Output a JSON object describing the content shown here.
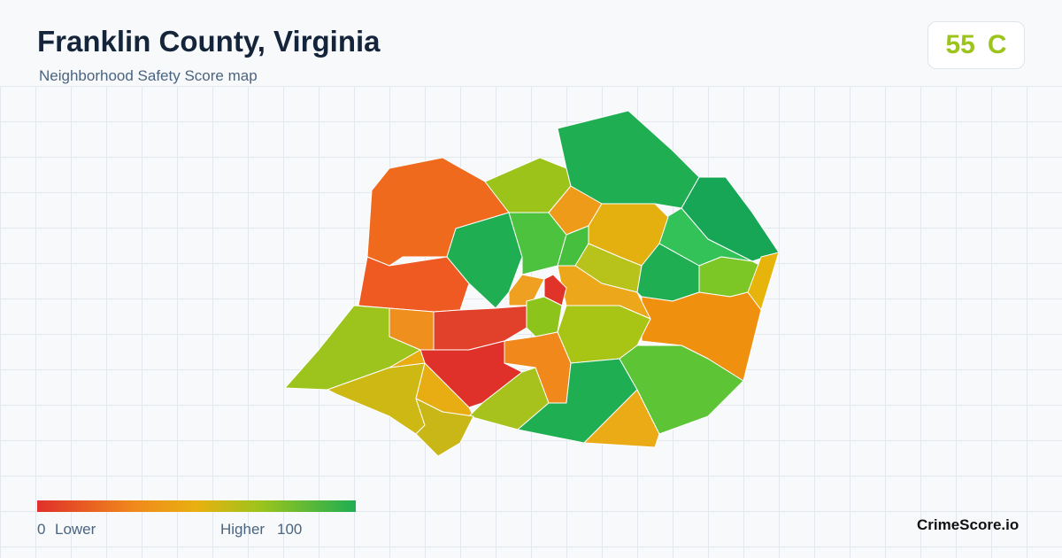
{
  "header": {
    "title": "Franklin County, Virginia",
    "subtitle": "Neighborhood Safety Score map"
  },
  "score": {
    "value": 55,
    "grade": "C"
  },
  "legend": {
    "min": 0,
    "min_label": "Lower",
    "max_label": "Higher",
    "max": 100
  },
  "brand": "CrimeScore.io"
}
